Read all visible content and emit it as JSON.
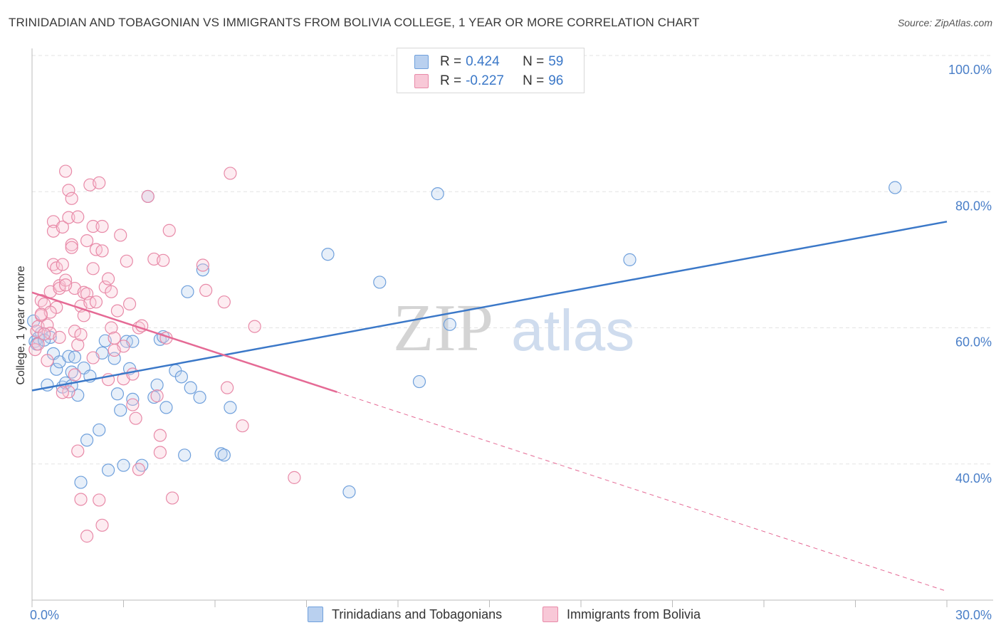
{
  "title": "TRINIDADIAN AND TOBAGONIAN VS IMMIGRANTS FROM BOLIVIA COLLEGE, 1 YEAR OR MORE CORRELATION CHART",
  "source": "Source: ZipAtlas.com",
  "watermark": {
    "zip": "ZIP",
    "atlas": "atlas"
  },
  "legend_stats": [
    {
      "r_label": "R =",
      "r_value": "0.424",
      "n_label": "N =",
      "n_value": "59",
      "color": "#6fa0dc",
      "fill": "#b9d0ef"
    },
    {
      "r_label": "R =",
      "r_value": "-0.227",
      "n_label": "N =",
      "n_value": "96",
      "color": "#e88aa8",
      "fill": "#f8c8d7"
    }
  ],
  "colors": {
    "blue": "#3b78c8",
    "pink": "#e56a95",
    "grid": "#e3e3e3"
  },
  "chart_data": {
    "type": "scatter",
    "title": "TRINIDADIAN AND TOBAGONIAN VS IMMIGRANTS FROM BOLIVIA COLLEGE, 1 YEAR OR MORE CORRELATION CHART",
    "xlabel": "",
    "ylabel": "College, 1 year or more",
    "xlim": [
      0,
      30
    ],
    "ylim": [
      20,
      100
    ],
    "x_tick_labels": [
      "0.0%",
      "30.0%"
    ],
    "y_ticks": [
      40,
      60,
      80,
      100
    ],
    "y_tick_labels": [
      "40.0%",
      "60.0%",
      "80.0%",
      "100.0%"
    ],
    "grid": "horizontal dashed",
    "legend_position": "bottom-center",
    "series": [
      {
        "name": "Trinidadians and Tobagonians",
        "color": "#6fa0dc",
        "trend": {
          "x": [
            0,
            30
          ],
          "y": [
            50.8,
            75.6
          ],
          "dashed_from": null
        },
        "points": [
          [
            0.1,
            58.0
          ],
          [
            0.3,
            59.2
          ],
          [
            0.2,
            58.5
          ],
          [
            0.5,
            51.6
          ],
          [
            0.6,
            58.6
          ],
          [
            0.7,
            56.2
          ],
          [
            0.8,
            53.9
          ],
          [
            0.9,
            55.0
          ],
          [
            1.0,
            51.3
          ],
          [
            1.1,
            51.9
          ],
          [
            1.2,
            55.8
          ],
          [
            1.3,
            53.5
          ],
          [
            1.4,
            55.7
          ],
          [
            1.5,
            50.1
          ],
          [
            1.6,
            37.3
          ],
          [
            1.7,
            54.1
          ],
          [
            1.8,
            43.5
          ],
          [
            1.9,
            52.9
          ],
          [
            2.2,
            45.0
          ],
          [
            2.3,
            56.3
          ],
          [
            2.4,
            58.1
          ],
          [
            2.5,
            39.1
          ],
          [
            2.7,
            55.5
          ],
          [
            2.8,
            50.3
          ],
          [
            2.9,
            47.9
          ],
          [
            3.1,
            58.0
          ],
          [
            3.0,
            39.8
          ],
          [
            3.2,
            54.0
          ],
          [
            3.3,
            58.0
          ],
          [
            3.3,
            49.5
          ],
          [
            3.6,
            39.8
          ],
          [
            3.8,
            79.3
          ],
          [
            4.0,
            49.8
          ],
          [
            4.1,
            51.6
          ],
          [
            4.2,
            58.3
          ],
          [
            4.3,
            58.7
          ],
          [
            4.4,
            48.3
          ],
          [
            4.7,
            53.7
          ],
          [
            4.9,
            52.8
          ],
          [
            5.0,
            41.3
          ],
          [
            5.1,
            65.3
          ],
          [
            5.2,
            51.2
          ],
          [
            5.5,
            49.8
          ],
          [
            5.6,
            68.5
          ],
          [
            6.2,
            41.5
          ],
          [
            6.3,
            41.3
          ],
          [
            6.5,
            48.3
          ],
          [
            9.7,
            70.8
          ],
          [
            10.4,
            35.9
          ],
          [
            11.4,
            66.7
          ],
          [
            12.7,
            52.1
          ],
          [
            13.3,
            79.7
          ],
          [
            13.7,
            60.5
          ],
          [
            19.6,
            70.0
          ],
          [
            28.3,
            80.6
          ],
          [
            0.05,
            61.0
          ],
          [
            0.15,
            57.6
          ],
          [
            0.4,
            58.2
          ],
          [
            1.3,
            51.5
          ]
        ]
      },
      {
        "name": "Immigrants from Bolivia",
        "color": "#e88aa8",
        "trend": {
          "x": [
            0,
            30
          ],
          "y": [
            65.2,
            21.3
          ],
          "dashed_from": 10.0
        },
        "points": [
          [
            0.1,
            56.8
          ],
          [
            0.15,
            59.5
          ],
          [
            0.2,
            60.2
          ],
          [
            0.3,
            61.8
          ],
          [
            0.3,
            64.0
          ],
          [
            0.4,
            63.5
          ],
          [
            0.5,
            55.2
          ],
          [
            0.5,
            60.4
          ],
          [
            0.6,
            59.2
          ],
          [
            0.6,
            65.3
          ],
          [
            0.7,
            69.3
          ],
          [
            0.7,
            75.6
          ],
          [
            0.7,
            74.2
          ],
          [
            0.8,
            63.0
          ],
          [
            0.8,
            68.8
          ],
          [
            0.9,
            66.2
          ],
          [
            0.9,
            65.8
          ],
          [
            1.0,
            74.8
          ],
          [
            1.0,
            69.3
          ],
          [
            1.1,
            67.0
          ],
          [
            1.1,
            83.0
          ],
          [
            1.2,
            80.2
          ],
          [
            1.2,
            76.2
          ],
          [
            1.3,
            79.0
          ],
          [
            1.3,
            72.2
          ],
          [
            1.3,
            71.8
          ],
          [
            1.4,
            65.8
          ],
          [
            1.4,
            59.5
          ],
          [
            1.5,
            76.3
          ],
          [
            1.5,
            57.5
          ],
          [
            1.6,
            63.2
          ],
          [
            1.6,
            59.0
          ],
          [
            1.7,
            65.2
          ],
          [
            1.7,
            61.8
          ],
          [
            1.8,
            65.0
          ],
          [
            1.8,
            72.8
          ],
          [
            1.9,
            63.7
          ],
          [
            1.9,
            81.0
          ],
          [
            2.0,
            74.9
          ],
          [
            2.0,
            68.7
          ],
          [
            2.1,
            71.5
          ],
          [
            2.1,
            63.8
          ],
          [
            2.2,
            81.3
          ],
          [
            2.3,
            71.3
          ],
          [
            2.3,
            74.9
          ],
          [
            2.4,
            66.0
          ],
          [
            2.5,
            67.2
          ],
          [
            2.6,
            65.3
          ],
          [
            2.6,
            60.0
          ],
          [
            2.7,
            58.5
          ],
          [
            2.8,
            62.5
          ],
          [
            2.9,
            73.6
          ],
          [
            3.0,
            52.5
          ],
          [
            3.1,
            69.8
          ],
          [
            3.2,
            63.5
          ],
          [
            3.3,
            53.2
          ],
          [
            3.3,
            48.7
          ],
          [
            3.4,
            46.7
          ],
          [
            3.5,
            60.0
          ],
          [
            3.6,
            60.3
          ],
          [
            3.8,
            79.3
          ],
          [
            4.0,
            70.1
          ],
          [
            4.2,
            44.2
          ],
          [
            4.2,
            41.7
          ],
          [
            4.3,
            69.9
          ],
          [
            4.4,
            58.5
          ],
          [
            4.5,
            74.3
          ],
          [
            4.6,
            35.0
          ],
          [
            5.6,
            69.2
          ],
          [
            5.7,
            65.5
          ],
          [
            6.3,
            63.8
          ],
          [
            6.4,
            51.2
          ],
          [
            6.5,
            82.7
          ],
          [
            6.9,
            45.6
          ],
          [
            7.3,
            60.2
          ],
          [
            8.6,
            38.0
          ],
          [
            1.5,
            41.9
          ],
          [
            1.6,
            34.8
          ],
          [
            2.2,
            34.7
          ],
          [
            2.3,
            31.0
          ],
          [
            1.8,
            29.4
          ],
          [
            2.5,
            52.4
          ],
          [
            3.0,
            57.3
          ],
          [
            1.2,
            50.6
          ],
          [
            0.4,
            59.1
          ],
          [
            0.6,
            62.3
          ],
          [
            0.9,
            58.6
          ],
          [
            1.1,
            66.3
          ],
          [
            2.0,
            55.6
          ],
          [
            3.5,
            39.2
          ],
          [
            0.2,
            57.6
          ],
          [
            0.3,
            62.0
          ],
          [
            1.4,
            53.1
          ],
          [
            2.7,
            56.7
          ],
          [
            1.0,
            50.5
          ],
          [
            4.1,
            50.0
          ]
        ]
      }
    ]
  }
}
